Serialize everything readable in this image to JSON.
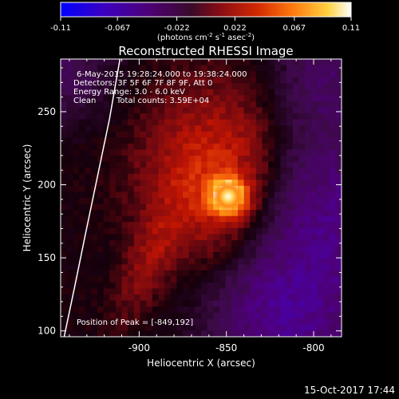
{
  "colorbar": {
    "tick_labels": [
      "-0.11",
      "-0.067",
      "-0.022",
      "0.022",
      "0.067",
      "0.11"
    ],
    "tick_values": [
      -0.11,
      -0.067,
      -0.022,
      0.022,
      0.067,
      0.11
    ],
    "range": [
      -0.11,
      0.11
    ],
    "unit_main": "(photons cm",
    "unit_sup1": "-2",
    "unit_mid1": " s",
    "unit_sup2": "-1",
    "unit_mid2": " asec",
    "unit_sup3": "-2",
    "unit_end": ")",
    "colors": [
      "#0000ff",
      "#4a00c8",
      "#500060",
      "#3a0a2a",
      "#a01010",
      "#e83a00",
      "#ff8c10",
      "#ffd840",
      "#ffffff"
    ]
  },
  "chart_data": {
    "type": "heatmap",
    "title": "Reconstructed RHESSI Image",
    "xlabel": "Heliocentric X (arcsec)",
    "ylabel": "Heliocentric Y (arcsec)",
    "xlim": [
      -945,
      -784
    ],
    "ylim": [
      96,
      286
    ],
    "x_ticks": [
      -900,
      -850,
      -800
    ],
    "x_tick_labels": [
      "-900",
      "-850",
      "-800"
    ],
    "y_ticks": [
      100,
      150,
      200,
      250
    ],
    "y_tick_labels": [
      "100",
      "150",
      "200",
      "250"
    ],
    "peak": [
      -849,
      192
    ],
    "grid": false,
    "limb_curve": [
      [
        -943,
        96
      ],
      [
        -937,
        130
      ],
      [
        -931,
        165
      ],
      [
        -924,
        205
      ],
      [
        -917,
        245
      ],
      [
        -911,
        286
      ]
    ],
    "annotations": {
      "time_range": "6-May-2015 19:28:24.000 to 19:38:24.000",
      "detectors": "Detectors: 3F 5F 6F 7F 8F 9F, Att 0",
      "energy": "Energy Range: 3.0 - 6.0 keV",
      "method": "Clean",
      "counts": "Total counts: 3.59E+04",
      "peak_label": "Position of Peak = [-849,192]"
    }
  },
  "footer": {
    "timestamp": "15-Oct-2017 17:44"
  }
}
